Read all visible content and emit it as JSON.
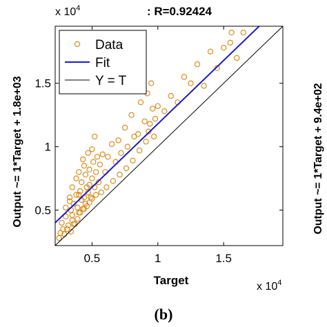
{
  "chart_data": {
    "type": "scatter",
    "title": ": R=0.92424",
    "xlabel": "Target",
    "ylabel": "Output ~= 1*Target + 1.8e+03",
    "right_ylabel": "Output ~= 1*Target + 9.4e+02",
    "x_exponent_label": "x 10^4",
    "y_exponent_label": "x 10^4",
    "xlim": [
      2200,
      19500
    ],
    "ylim": [
      2200,
      19500
    ],
    "x_ticks": [
      5000,
      10000,
      15000
    ],
    "x_tick_labels": [
      "0.5",
      "1",
      "1.5"
    ],
    "y_ticks": [
      5000,
      10000,
      15000
    ],
    "y_tick_labels": [
      "0.5",
      "1",
      "1.5"
    ],
    "grid": false,
    "legend": {
      "placement": "top-left",
      "entries": [
        "Data",
        "Fit",
        "Y = T"
      ]
    },
    "fit": {
      "slope": 1,
      "intercept": 1800
    },
    "identity": {
      "slope": 1,
      "intercept": 0
    },
    "colors": {
      "data": "#d98c1e",
      "fit": "#1a1acc",
      "identity": "#000000"
    },
    "series": [
      {
        "name": "Data",
        "x": [
          2500,
          2700,
          2800,
          3000,
          3000,
          3200,
          3300,
          3400,
          3500,
          3500,
          3600,
          3700,
          3800,
          3800,
          3900,
          4000,
          4000,
          4100,
          4200,
          4200,
          4300,
          4400,
          4400,
          4500,
          4500,
          4600,
          4700,
          4800,
          4800,
          4900,
          5000,
          5000,
          5100,
          5200,
          5300,
          5400,
          5500,
          5600,
          5800,
          6000,
          6200,
          6500,
          6800,
          7000,
          7200,
          7500,
          7700,
          8000,
          8200,
          8500,
          8700,
          9000,
          9200,
          9300,
          9500,
          9600,
          9800,
          10000,
          10500,
          11000,
          11500,
          12000,
          12500,
          13000,
          13500,
          14000,
          14500,
          15000,
          15500,
          15600,
          16000,
          16500,
          2600,
          2900,
          3100,
          3400,
          3600,
          3900,
          4100,
          4300,
          4600,
          4800,
          5000,
          5300,
          5700,
          6100,
          6600,
          7100,
          7600,
          8100,
          8600,
          9100,
          9400,
          9700,
          4000,
          4400,
          4700,
          5200,
          3500,
          3300
        ],
        "y": [
          2800,
          4000,
          3500,
          5200,
          4500,
          3800,
          6000,
          5000,
          4200,
          6800,
          5500,
          3900,
          6200,
          7500,
          5200,
          4800,
          8000,
          6500,
          5800,
          7200,
          9000,
          6000,
          8500,
          5500,
          7800,
          6800,
          9500,
          7000,
          8200,
          6000,
          7500,
          9800,
          8800,
          6800,
          8000,
          9200,
          7200,
          8600,
          9400,
          8000,
          9200,
          10200,
          8800,
          10500,
          9500,
          11500,
          10000,
          12500,
          10800,
          11000,
          13500,
          12000,
          14200,
          11200,
          15000,
          13000,
          12200,
          13200,
          12800,
          14000,
          13500,
          15500,
          15000,
          16500,
          14800,
          17500,
          16200,
          17800,
          18200,
          19000,
          17000,
          19000,
          3200,
          3100,
          3500,
          3300,
          3900,
          4300,
          4800,
          5100,
          5300,
          5600,
          5900,
          6200,
          6400,
          6800,
          7300,
          7800,
          8300,
          8900,
          9700,
          10400,
          11800,
          10800,
          6200,
          5100,
          6400,
          10800,
          4600,
          5700
        ]
      }
    ]
  },
  "caption": "(b)"
}
